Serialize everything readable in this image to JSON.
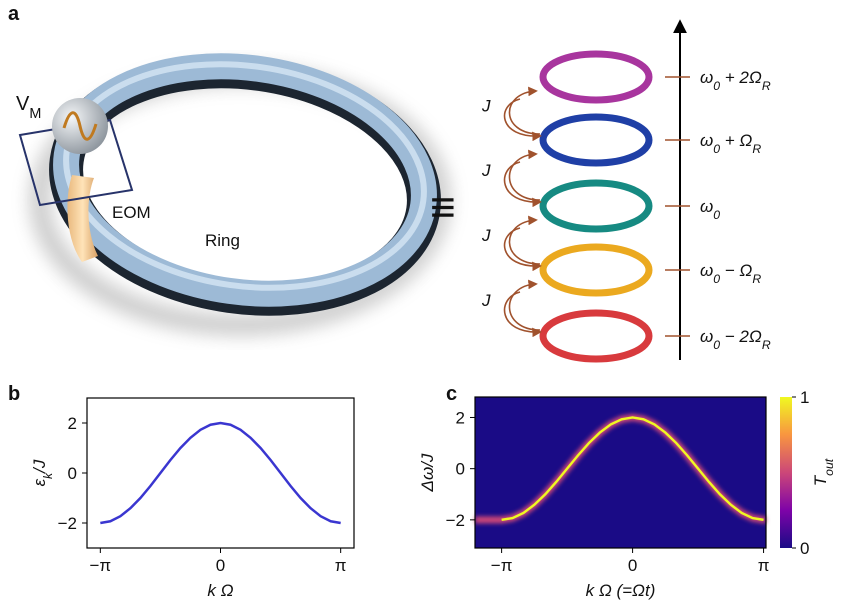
{
  "panel_labels": [
    "a",
    "b",
    "c"
  ],
  "diagram": {
    "vm": [
      {
        "t": "V"
      },
      {
        "sub": "M"
      }
    ],
    "eom": "EOM",
    "ring": "Ring",
    "equiv": "≡",
    "couplings": [
      "J",
      "J",
      "J",
      "J"
    ],
    "levels": [
      {
        "color": "#a8359e",
        "label": [
          {
            "t": "ω"
          },
          {
            "sub": "0"
          },
          {
            "t": " + 2Ω"
          },
          {
            "sub": "R"
          }
        ]
      },
      {
        "color": "#1f3fa6",
        "label": [
          {
            "t": "ω"
          },
          {
            "sub": "0"
          },
          {
            "t": " + Ω"
          },
          {
            "sub": "R"
          }
        ]
      },
      {
        "color": "#168a82",
        "label": [
          {
            "t": "ω"
          },
          {
            "sub": "0"
          }
        ]
      },
      {
        "color": "#eba91f",
        "label": [
          {
            "t": "ω"
          },
          {
            "sub": "0"
          },
          {
            "t": " − Ω"
          },
          {
            "sub": "R"
          }
        ]
      },
      {
        "color": "#d83a3d",
        "label": [
          {
            "t": "ω"
          },
          {
            "sub": "0"
          },
          {
            "t": " − 2Ω"
          },
          {
            "sub": "R"
          }
        ]
      }
    ]
  },
  "chart_data": [
    {
      "type": "line",
      "xlabel": [
        {
          "t": "k Ω"
        }
      ],
      "ylabel": [
        {
          "t": "ε"
        },
        {
          "sub": "k"
        },
        {
          "t": "/J"
        }
      ],
      "x": [
        -3.1416,
        -2.8798,
        -2.618,
        -2.3562,
        -2.0944,
        -1.8326,
        -1.5708,
        -1.309,
        -1.0472,
        -0.7854,
        -0.5236,
        -0.2618,
        0,
        0.2618,
        0.5236,
        0.7854,
        1.0472,
        1.309,
        1.5708,
        1.8326,
        2.0944,
        2.3562,
        2.618,
        2.8798,
        3.1416
      ],
      "values": [
        -2,
        -1.93,
        -1.73,
        -1.41,
        -1,
        -0.52,
        0,
        0.52,
        1,
        1.41,
        1.73,
        1.93,
        2,
        1.93,
        1.73,
        1.41,
        1,
        0.52,
        0,
        -0.52,
        -1,
        -1.41,
        -1.73,
        -1.93,
        -2
      ],
      "color": "#3a36d0",
      "xlim": [
        -3.49,
        3.49
      ],
      "ylim": [
        -3,
        3
      ],
      "xticks": [
        {
          "value": -3.1416,
          "label": "−π"
        },
        0,
        {
          "value": 3.1416,
          "label": "π"
        }
      ],
      "yticks": [
        {
          "value": -2,
          "label": "−2"
        },
        0,
        2
      ]
    },
    {
      "type": "heatmap",
      "xlabel": [
        {
          "t": "k Ω (=Ωt)"
        }
      ],
      "ylabel": [
        {
          "t": "Δω/J"
        }
      ],
      "x": [
        -3.1416,
        -2.8798,
        -2.618,
        -2.3562,
        -2.0944,
        -1.8326,
        -1.5708,
        -1.309,
        -1.0472,
        -0.7854,
        -0.5236,
        -0.2618,
        0,
        0.2618,
        0.5236,
        0.7854,
        1.0472,
        1.309,
        1.5708,
        1.8326,
        2.0944,
        2.3562,
        2.618,
        2.8798,
        3.1416
      ],
      "values": [
        -2,
        -1.93,
        -1.73,
        -1.41,
        -1,
        -0.52,
        0,
        0.52,
        1,
        1.41,
        1.73,
        1.93,
        2,
        1.93,
        1.73,
        1.41,
        1,
        0.52,
        0,
        -0.52,
        -1,
        -1.41,
        -1.73,
        -1.93,
        -2
      ],
      "xlim": [
        -3.78,
        3.2
      ],
      "ylim": [
        -3.1,
        2.8
      ],
      "xticks": [
        {
          "value": -3.1416,
          "label": "−π"
        },
        0,
        {
          "value": 3.1416,
          "label": "π"
        }
      ],
      "yticks": [
        {
          "value": -2,
          "label": "−2"
        },
        0,
        2
      ],
      "colorbar": {
        "lim": [
          0,
          1
        ],
        "ticks": [
          0,
          1
        ],
        "label": [
          {
            "t": "T"
          },
          {
            "sub": "out"
          }
        ],
        "colors": [
          "#1a0b86",
          "#7e03a8",
          "#cc4778",
          "#f89540",
          "#f0f921"
        ]
      }
    }
  ]
}
